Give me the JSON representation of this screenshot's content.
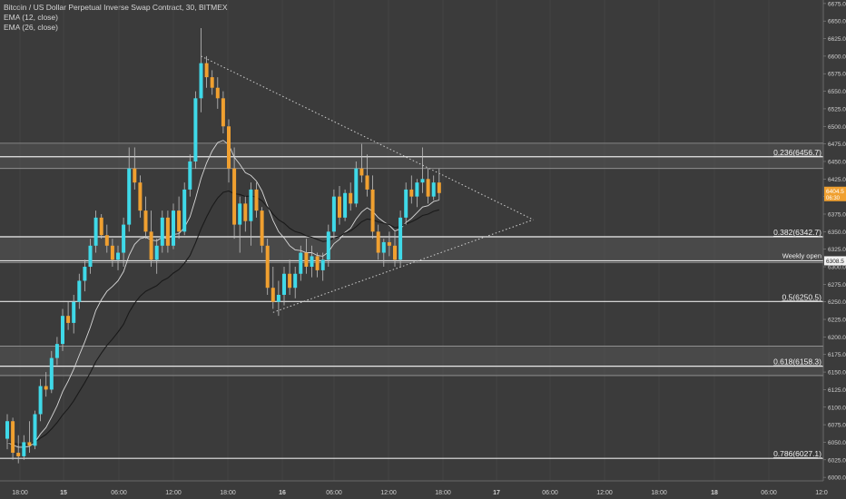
{
  "header": {
    "title": "Bitcoin / US Dollar Perpetual Inverse Swap Contract, 30, BITMEX",
    "indicators": [
      "EMA (12, close)",
      "EMA (26, close)"
    ]
  },
  "colors": {
    "background": "#3b3b3b",
    "bull": "#3fd9e8",
    "bear": "#f0a030",
    "grid": "#4a4a4a",
    "levelLine": "#e8e8e8",
    "ema12": "#d8d8d8",
    "ema26": "#1a1a1a",
    "trendline": "#cfcfcf",
    "axisText": "#d0d0d0"
  },
  "chart_data": {
    "type": "candlestick",
    "xlabel": "",
    "ylabel": "",
    "ylim": [
      5995,
      6680
    ],
    "y_ticks": [
      6000,
      6025,
      6050,
      6075,
      6100,
      6125,
      6150,
      6175,
      6200,
      6225,
      6250,
      6275,
      6300,
      6325,
      6350,
      6375,
      6400,
      6425,
      6450,
      6475,
      6500,
      6525,
      6550,
      6575,
      6600,
      6625,
      6650,
      6675
    ],
    "x_ticks": [
      "18:00",
      "15",
      "06:00",
      "12:00",
      "18:00",
      "16",
      "06:00",
      "12:00",
      "18:00",
      "17",
      "06:00",
      "12:00",
      "18:00",
      "18",
      "06:00",
      "12:0"
    ],
    "grid": false,
    "price_labels": {
      "last": "6404.5",
      "countdown": "06:30",
      "weekly_open_label": "Weekly open",
      "weekly_open_value": "6308.5"
    },
    "fib_levels": [
      {
        "label": "0.236(6456.7)",
        "price": 6456.7
      },
      {
        "label": "0.382(6342.7)",
        "price": 6342.7
      },
      {
        "label": "0.5(6250.5)",
        "price": 6250.5
      },
      {
        "label": "0.618(6158.3)",
        "price": 6158.3
      },
      {
        "label": "0.786(6027.1)",
        "price": 6027.1
      }
    ],
    "weekly_open": 6308.5,
    "zones": [
      [
        6440,
        6476
      ],
      [
        6306,
        6343
      ],
      [
        6145,
        6187
      ]
    ],
    "triangle": {
      "upper": [
        [
          0,
          6600
        ],
        [
          98,
          6367
        ]
      ],
      "lower": [
        [
          0,
          6235
        ],
        [
          98,
          6367
        ]
      ]
    },
    "series": [
      {
        "name": "OHLC",
        "values": [
          [
            6055,
            6090,
            6040,
            6080
          ],
          [
            6080,
            6085,
            6025,
            6035
          ],
          [
            6035,
            6060,
            6020,
            6030
          ],
          [
            6030,
            6060,
            6025,
            6050
          ],
          [
            6050,
            6080,
            6035,
            6045
          ],
          [
            6045,
            6095,
            6040,
            6090
          ],
          [
            6090,
            6140,
            6080,
            6130
          ],
          [
            6130,
            6150,
            6115,
            6125
          ],
          [
            6125,
            6180,
            6120,
            6170
          ],
          [
            6170,
            6200,
            6160,
            6190
          ],
          [
            6190,
            6240,
            6180,
            6230
          ],
          [
            6230,
            6250,
            6210,
            6220
          ],
          [
            6220,
            6260,
            6205,
            6250
          ],
          [
            6250,
            6290,
            6240,
            6280
          ],
          [
            6280,
            6310,
            6265,
            6300
          ],
          [
            6300,
            6340,
            6290,
            6330
          ],
          [
            6330,
            6380,
            6320,
            6370
          ],
          [
            6370,
            6375,
            6340,
            6345
          ],
          [
            6345,
            6360,
            6320,
            6330
          ],
          [
            6330,
            6340,
            6300,
            6310
          ],
          [
            6310,
            6330,
            6295,
            6320
          ],
          [
            6320,
            6370,
            6300,
            6360
          ],
          [
            6360,
            6470,
            6350,
            6440
          ],
          [
            6440,
            6470,
            6410,
            6420
          ],
          [
            6420,
            6430,
            6370,
            6380
          ],
          [
            6380,
            6400,
            6340,
            6350
          ],
          [
            6350,
            6380,
            6300,
            6310
          ],
          [
            6310,
            6340,
            6290,
            6330
          ],
          [
            6330,
            6380,
            6320,
            6370
          ],
          [
            6370,
            6380,
            6320,
            6330
          ],
          [
            6330,
            6390,
            6325,
            6380
          ],
          [
            6380,
            6400,
            6340,
            6350
          ],
          [
            6350,
            6420,
            6345,
            6410
          ],
          [
            6410,
            6460,
            6400,
            6450
          ],
          [
            6450,
            6550,
            6440,
            6540
          ],
          [
            6540,
            6640,
            6520,
            6590
          ],
          [
            6590,
            6600,
            6555,
            6570
          ],
          [
            6570,
            6580,
            6545,
            6555
          ],
          [
            6555,
            6570,
            6525,
            6540
          ],
          [
            6540,
            6550,
            6490,
            6500
          ],
          [
            6500,
            6510,
            6420,
            6440
          ],
          [
            6440,
            6470,
            6340,
            6360
          ],
          [
            6360,
            6400,
            6320,
            6390
          ],
          [
            6390,
            6400,
            6350,
            6365
          ],
          [
            6365,
            6420,
            6330,
            6410
          ],
          [
            6410,
            6420,
            6370,
            6380
          ],
          [
            6380,
            6385,
            6320,
            6330
          ],
          [
            6330,
            6340,
            6260,
            6270
          ],
          [
            6270,
            6300,
            6240,
            6250
          ],
          [
            6250,
            6280,
            6230,
            6260
          ],
          [
            6260,
            6300,
            6245,
            6290
          ],
          [
            6290,
            6310,
            6260,
            6270
          ],
          [
            6270,
            6300,
            6255,
            6290
          ],
          [
            6290,
            6330,
            6280,
            6320
          ],
          [
            6320,
            6340,
            6290,
            6300
          ],
          [
            6300,
            6330,
            6285,
            6315
          ],
          [
            6315,
            6320,
            6285,
            6295
          ],
          [
            6295,
            6320,
            6280,
            6310
          ],
          [
            6310,
            6360,
            6300,
            6350
          ],
          [
            6350,
            6410,
            6340,
            6400
          ],
          [
            6400,
            6415,
            6360,
            6370
          ],
          [
            6370,
            6410,
            6365,
            6405
          ],
          [
            6405,
            6420,
            6380,
            6390
          ],
          [
            6390,
            6450,
            6385,
            6440
          ],
          [
            6440,
            6475,
            6420,
            6430
          ],
          [
            6430,
            6460,
            6400,
            6410
          ],
          [
            6410,
            6430,
            6340,
            6350
          ],
          [
            6350,
            6360,
            6310,
            6320
          ],
          [
            6320,
            6340,
            6300,
            6335
          ],
          [
            6335,
            6350,
            6315,
            6330
          ],
          [
            6330,
            6350,
            6300,
            6310
          ],
          [
            6310,
            6380,
            6300,
            6370
          ],
          [
            6370,
            6420,
            6360,
            6410
          ],
          [
            6410,
            6430,
            6390,
            6400
          ],
          [
            6400,
            6425,
            6385,
            6420
          ],
          [
            6420,
            6470,
            6405,
            6425
          ],
          [
            6425,
            6440,
            6390,
            6400
          ],
          [
            6400,
            6430,
            6395,
            6420
          ],
          [
            6420,
            6440,
            6395,
            6405
          ]
        ]
      },
      {
        "name": "EMA (12, close)",
        "values": [
          6050,
          6046,
          6043,
          6043,
          6044,
          6050,
          6062,
          6071,
          6086,
          6102,
          6122,
          6137,
          6154,
          6174,
          6193,
          6214,
          6238,
          6253,
          6265,
          6272,
          6280,
          6293,
          6316,
          6332,
          6340,
          6342,
          6338,
          6337,
          6342,
          6340,
          6346,
          6347,
          6356,
          6371,
          6397,
          6426,
          6448,
          6465,
          6477,
          6480,
          6474,
          6456,
          6446,
          6434,
          6430,
          6422,
          6408,
          6387,
          6366,
          6350,
          6341,
          6330,
          6324,
          6323,
          6320,
          6320,
          6316,
          6315,
          6321,
          6333,
          6339,
          6349,
          6355,
          6368,
          6378,
          6384,
          6379,
          6370,
          6364,
          6359,
          6351,
          6354,
          6363,
          6369,
          6377,
          6385,
          6387,
          6393,
          6395
        ]
      },
      {
        "name": "EMA (26, close)",
        "values": [
          6050,
          6049,
          6047,
          6047,
          6047,
          6050,
          6056,
          6061,
          6069,
          6078,
          6089,
          6098,
          6109,
          6122,
          6135,
          6149,
          6165,
          6177,
          6188,
          6197,
          6207,
          6218,
          6235,
          6248,
          6258,
          6265,
          6269,
          6273,
          6280,
          6284,
          6291,
          6296,
          6305,
          6316,
          6334,
          6354,
          6371,
          6386,
          6398,
          6406,
          6408,
          6404,
          6403,
          6400,
          6401,
          6399,
          6394,
          6385,
          6375,
          6367,
          6362,
          6355,
          6350,
          6348,
          6344,
          6342,
          6339,
          6336,
          6337,
          6341,
          6343,
          6348,
          6351,
          6357,
          6364,
          6368,
          6367,
          6364,
          6362,
          6360,
          6356,
          6357,
          6361,
          6364,
          6368,
          6373,
          6375,
          6379,
          6381
        ]
      }
    ]
  }
}
